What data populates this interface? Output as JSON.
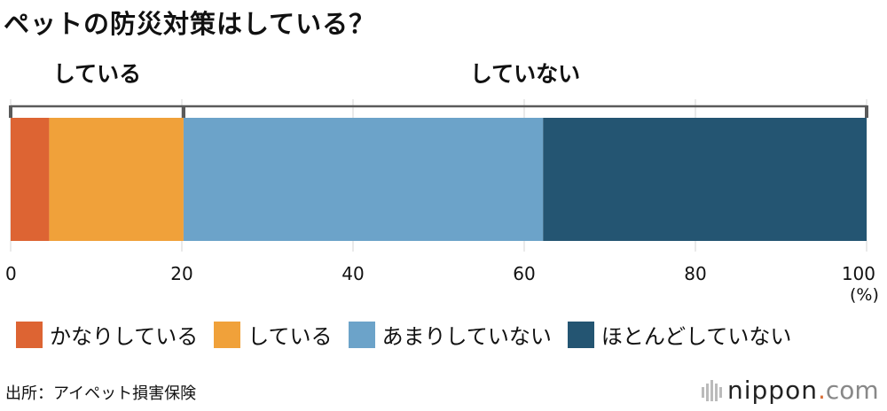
{
  "title": "ペットの防災対策はしている？",
  "chart_data": {
    "type": "bar",
    "orientation": "horizontal-stacked",
    "categories": [
      ""
    ],
    "series": [
      {
        "name": "かなりしている",
        "values": [
          4.5
        ],
        "color": "#dd6433"
      },
      {
        "name": "している",
        "values": [
          15.7
        ],
        "color": "#f0a13a"
      },
      {
        "name": "あまりしていない",
        "values": [
          42.0
        ],
        "color": "#6ca3c9"
      },
      {
        "name": "ほとんどしていない",
        "values": [
          37.8
        ],
        "color": "#245572"
      }
    ],
    "xlim": [
      0,
      100
    ],
    "xticks": [
      "0",
      "20",
      "40",
      "60",
      "80",
      "100"
    ],
    "xunit": "(%)",
    "grid": true,
    "group_brackets": [
      {
        "label": "している",
        "range": [
          0,
          20.2
        ]
      },
      {
        "label": "していない",
        "range": [
          20.2,
          100
        ]
      }
    ],
    "legend_position": "bottom"
  },
  "source": "出所：アイペット損害保険",
  "brand": {
    "name": "nippon",
    "dot": ".",
    "domain": "com"
  },
  "colors": {
    "grid": "#d6d6d6",
    "bracket": "#5a5a5a",
    "text": "#111111"
  }
}
